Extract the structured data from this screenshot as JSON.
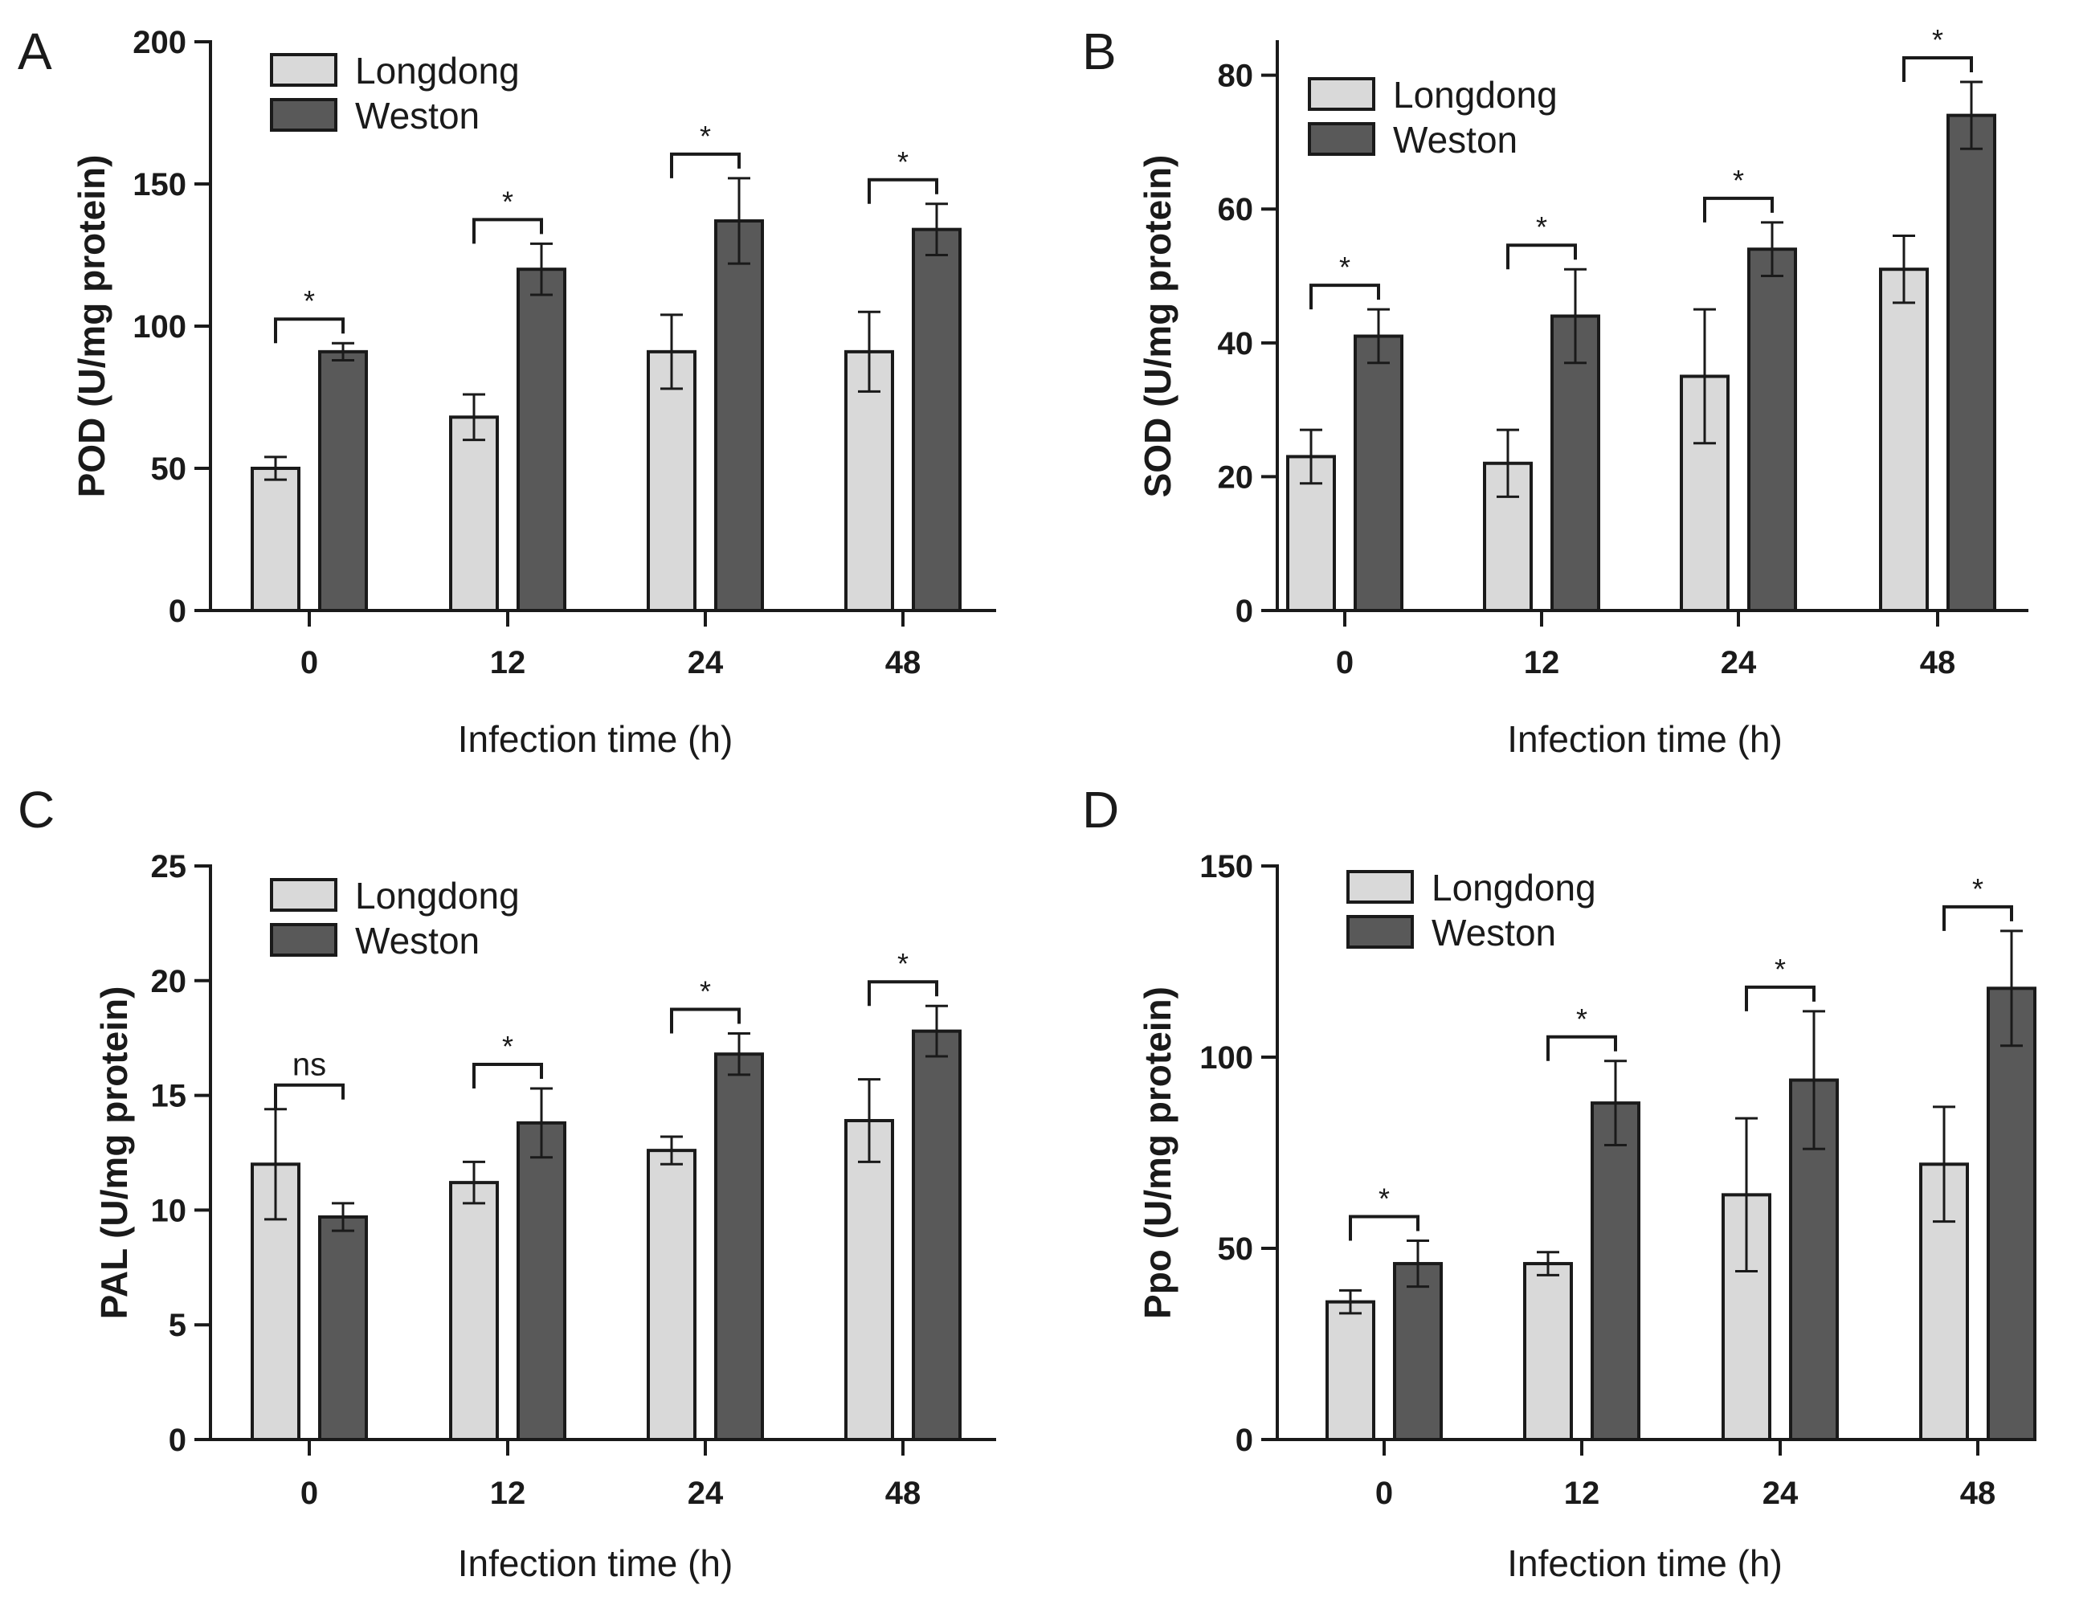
{
  "colors": {
    "longdong": "#d9d9d9",
    "weston": "#595959",
    "axis": "#1a1a1a"
  },
  "chart_data": [
    {
      "type": "bar",
      "panel": "A",
      "ylabel": "POD (U/mg protein)",
      "xlabel": "Infection time (h)",
      "ylim": [
        0,
        200
      ],
      "yticks": [
        0,
        50,
        100,
        150,
        200
      ],
      "categories": [
        "0",
        "12",
        "24",
        "48"
      ],
      "legend": [
        "Longdong",
        "Weston"
      ],
      "series": [
        {
          "name": "Longdong",
          "values": [
            50,
            68,
            91,
            91
          ],
          "errors": [
            4,
            8,
            13,
            14
          ]
        },
        {
          "name": "Weston",
          "values": [
            91,
            120,
            137,
            134
          ],
          "errors": [
            3,
            9,
            15,
            9
          ]
        }
      ],
      "significance": [
        "*",
        "*",
        "*",
        "*"
      ]
    },
    {
      "type": "bar",
      "panel": "B",
      "ylabel": "SOD (U/mg protein)",
      "xlabel": "Infection time (h)",
      "ylim": [
        0,
        85
      ],
      "yticks": [
        0,
        20,
        40,
        60,
        80
      ],
      "categories": [
        "0",
        "12",
        "24",
        "48"
      ],
      "legend": [
        "Longdong",
        "Weston"
      ],
      "series": [
        {
          "name": "Longdong",
          "values": [
            23,
            22,
            35,
            51
          ],
          "errors": [
            4,
            5,
            10,
            5
          ]
        },
        {
          "name": "Weston",
          "values": [
            41,
            44,
            54,
            74
          ],
          "errors": [
            4,
            7,
            4,
            5
          ]
        }
      ],
      "significance": [
        "*",
        "*",
        "*",
        "*"
      ]
    },
    {
      "type": "bar",
      "panel": "C",
      "ylabel": "PAL (U/mg protein)",
      "xlabel": "Infection time (h)",
      "ylim": [
        0,
        25
      ],
      "yticks": [
        0,
        5,
        10,
        15,
        20,
        25
      ],
      "categories": [
        "0",
        "12",
        "24",
        "48"
      ],
      "legend": [
        "Longdong",
        "Weston"
      ],
      "series": [
        {
          "name": "Longdong",
          "values": [
            12,
            11.2,
            12.6,
            13.9
          ],
          "errors": [
            2.4,
            0.9,
            0.6,
            1.8
          ]
        },
        {
          "name": "Weston",
          "values": [
            9.7,
            13.8,
            16.8,
            17.8
          ],
          "errors": [
            0.6,
            1.5,
            0.9,
            1.1
          ]
        }
      ],
      "significance": [
        "ns",
        "*",
        "*",
        "*"
      ]
    },
    {
      "type": "bar",
      "panel": "D",
      "ylabel": "Ppo (U/mg protein)",
      "xlabel": "Infection time (h)",
      "ylim": [
        0,
        150
      ],
      "yticks": [
        0,
        50,
        100,
        150
      ],
      "categories": [
        "0",
        "12",
        "24",
        "48"
      ],
      "legend": [
        "Longdong",
        "Weston"
      ],
      "series": [
        {
          "name": "Longdong",
          "values": [
            36,
            46,
            64,
            72
          ],
          "errors": [
            3,
            3,
            20,
            15
          ]
        },
        {
          "name": "Weston",
          "values": [
            46,
            88,
            94,
            118
          ],
          "errors": [
            6,
            11,
            18,
            15
          ]
        }
      ],
      "significance": [
        "*",
        "*",
        "*",
        "*"
      ]
    }
  ]
}
